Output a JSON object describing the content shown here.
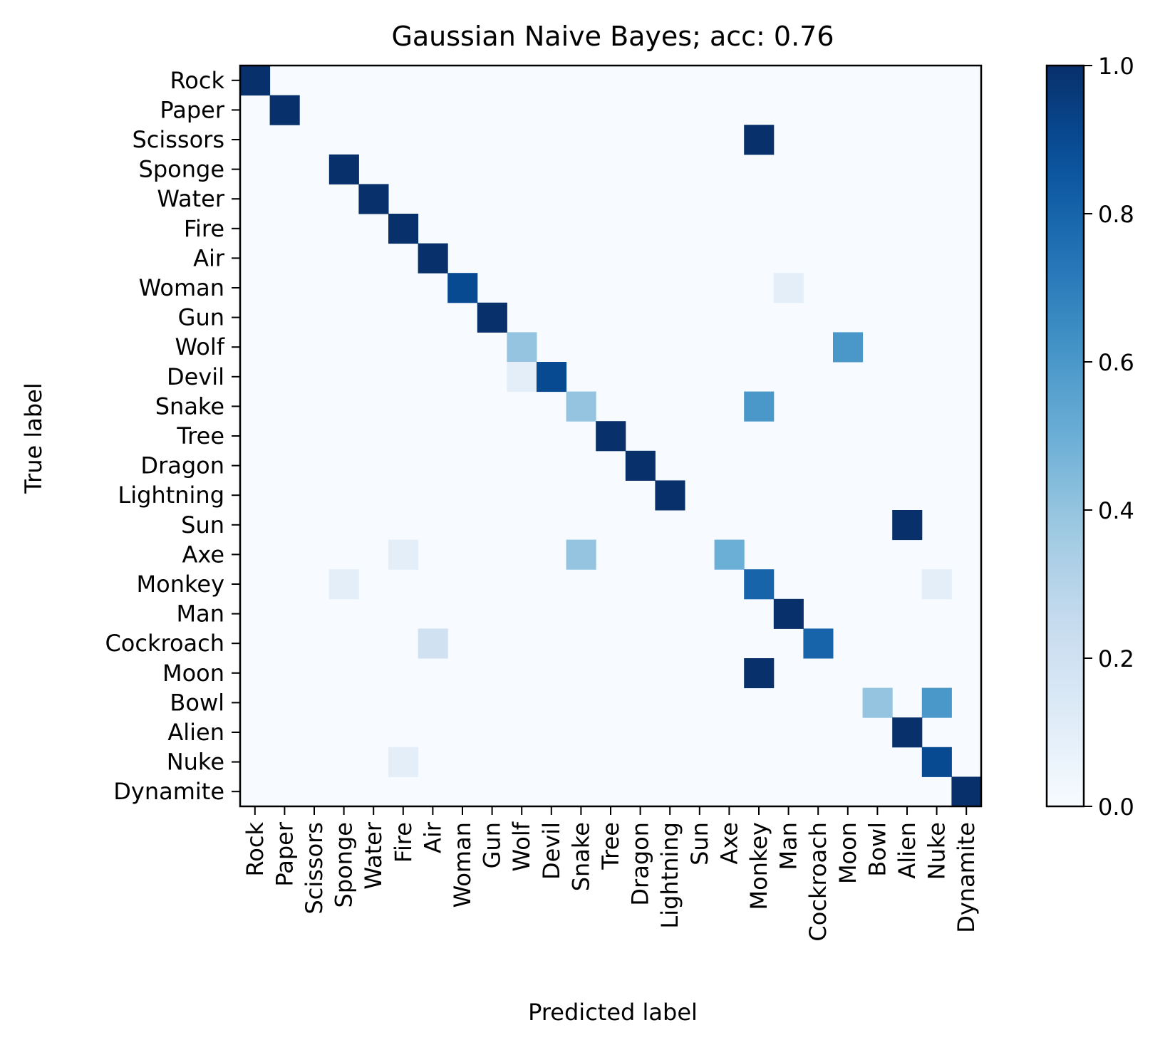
{
  "chart_data": {
    "type": "heatmap",
    "title": "Gaussian Naive Bayes; acc: 0.76",
    "xlabel": "Predicted label",
    "ylabel": "True label",
    "labels": [
      "Rock",
      "Paper",
      "Scissors",
      "Sponge",
      "Water",
      "Fire",
      "Air",
      "Woman",
      "Gun",
      "Wolf",
      "Devil",
      "Snake",
      "Tree",
      "Dragon",
      "Lightning",
      "Sun",
      "Axe",
      "Monkey",
      "Man",
      "Cockroach",
      "Moon",
      "Bowl",
      "Alien",
      "Nuke",
      "Dynamite"
    ],
    "colormap": "Blues",
    "colorbar": {
      "min": 0.0,
      "max": 1.0,
      "ticks": [
        0.0,
        0.2,
        0.4,
        0.6,
        0.8,
        1.0
      ],
      "tick_labels": [
        "0.0",
        "0.2",
        "0.4",
        "0.6",
        "0.8",
        "1.0"
      ]
    },
    "cells": [
      {
        "row": 0,
        "col": 0,
        "value": 1.0
      },
      {
        "row": 1,
        "col": 1,
        "value": 1.0
      },
      {
        "row": 2,
        "col": 17,
        "value": 1.0
      },
      {
        "row": 3,
        "col": 3,
        "value": 1.0
      },
      {
        "row": 4,
        "col": 4,
        "value": 1.0
      },
      {
        "row": 5,
        "col": 5,
        "value": 1.0
      },
      {
        "row": 6,
        "col": 6,
        "value": 1.0
      },
      {
        "row": 7,
        "col": 7,
        "value": 0.9
      },
      {
        "row": 7,
        "col": 18,
        "value": 0.1
      },
      {
        "row": 8,
        "col": 8,
        "value": 1.0
      },
      {
        "row": 9,
        "col": 9,
        "value": 0.4
      },
      {
        "row": 9,
        "col": 20,
        "value": 0.6
      },
      {
        "row": 10,
        "col": 9,
        "value": 0.1
      },
      {
        "row": 10,
        "col": 10,
        "value": 0.9
      },
      {
        "row": 11,
        "col": 11,
        "value": 0.4
      },
      {
        "row": 11,
        "col": 17,
        "value": 0.6
      },
      {
        "row": 12,
        "col": 12,
        "value": 1.0
      },
      {
        "row": 13,
        "col": 13,
        "value": 1.0
      },
      {
        "row": 14,
        "col": 14,
        "value": 1.0
      },
      {
        "row": 15,
        "col": 22,
        "value": 1.0
      },
      {
        "row": 16,
        "col": 5,
        "value": 0.1
      },
      {
        "row": 16,
        "col": 11,
        "value": 0.4
      },
      {
        "row": 16,
        "col": 16,
        "value": 0.5
      },
      {
        "row": 17,
        "col": 3,
        "value": 0.1
      },
      {
        "row": 17,
        "col": 17,
        "value": 0.8
      },
      {
        "row": 17,
        "col": 23,
        "value": 0.1
      },
      {
        "row": 18,
        "col": 18,
        "value": 1.0
      },
      {
        "row": 19,
        "col": 6,
        "value": 0.2
      },
      {
        "row": 19,
        "col": 19,
        "value": 0.8
      },
      {
        "row": 20,
        "col": 17,
        "value": 1.0
      },
      {
        "row": 21,
        "col": 21,
        "value": 0.4
      },
      {
        "row": 21,
        "col": 23,
        "value": 0.6
      },
      {
        "row": 22,
        "col": 22,
        "value": 1.0
      },
      {
        "row": 23,
        "col": 5,
        "value": 0.1
      },
      {
        "row": 23,
        "col": 23,
        "value": 0.9
      },
      {
        "row": 24,
        "col": 24,
        "value": 1.0
      }
    ]
  }
}
